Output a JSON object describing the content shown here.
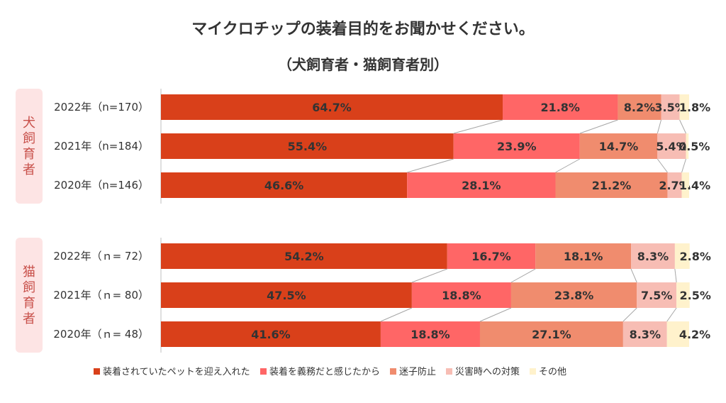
{
  "chart_data": {
    "type": "bar",
    "orientation": "horizontal",
    "stacked": true,
    "title": "マイクロチップの装着目的をお聞かせください。",
    "subtitle": "（犬飼育者・猫飼育者別）",
    "xlim": [
      0,
      100
    ],
    "legend_position": "bottom",
    "series_names": [
      "装着されていたペットを迎え入れた",
      "装着を義務だと感じたから",
      "迷子防止",
      "災害時への対策",
      "その他"
    ],
    "colors": [
      "#d9401a",
      "#ff6666",
      "#f08c6e",
      "#f7bdb4",
      "#fff2cc"
    ],
    "groups": [
      {
        "label": "犬飼育者",
        "rows": [
          {
            "label": "2022年（n=170）",
            "values": [
              64.7,
              21.8,
              8.2,
              3.5,
              1.8
            ]
          },
          {
            "label": "2021年（n=184）",
            "values": [
              55.4,
              23.9,
              14.7,
              5.4,
              0.5
            ]
          },
          {
            "label": "2020年（n=146）",
            "values": [
              46.6,
              28.1,
              21.2,
              2.7,
              1.4
            ]
          }
        ]
      },
      {
        "label": "猫飼育者",
        "rows": [
          {
            "label": "2022年（ｎ= 72）",
            "values": [
              54.2,
              16.7,
              18.1,
              8.3,
              2.8
            ]
          },
          {
            "label": "2021年（ｎ= 80）",
            "values": [
              47.5,
              18.8,
              23.8,
              7.5,
              2.5
            ]
          },
          {
            "label": "2020年（ｎ= 48）",
            "values": [
              41.6,
              18.8,
              27.1,
              8.3,
              4.2
            ]
          }
        ]
      }
    ]
  }
}
